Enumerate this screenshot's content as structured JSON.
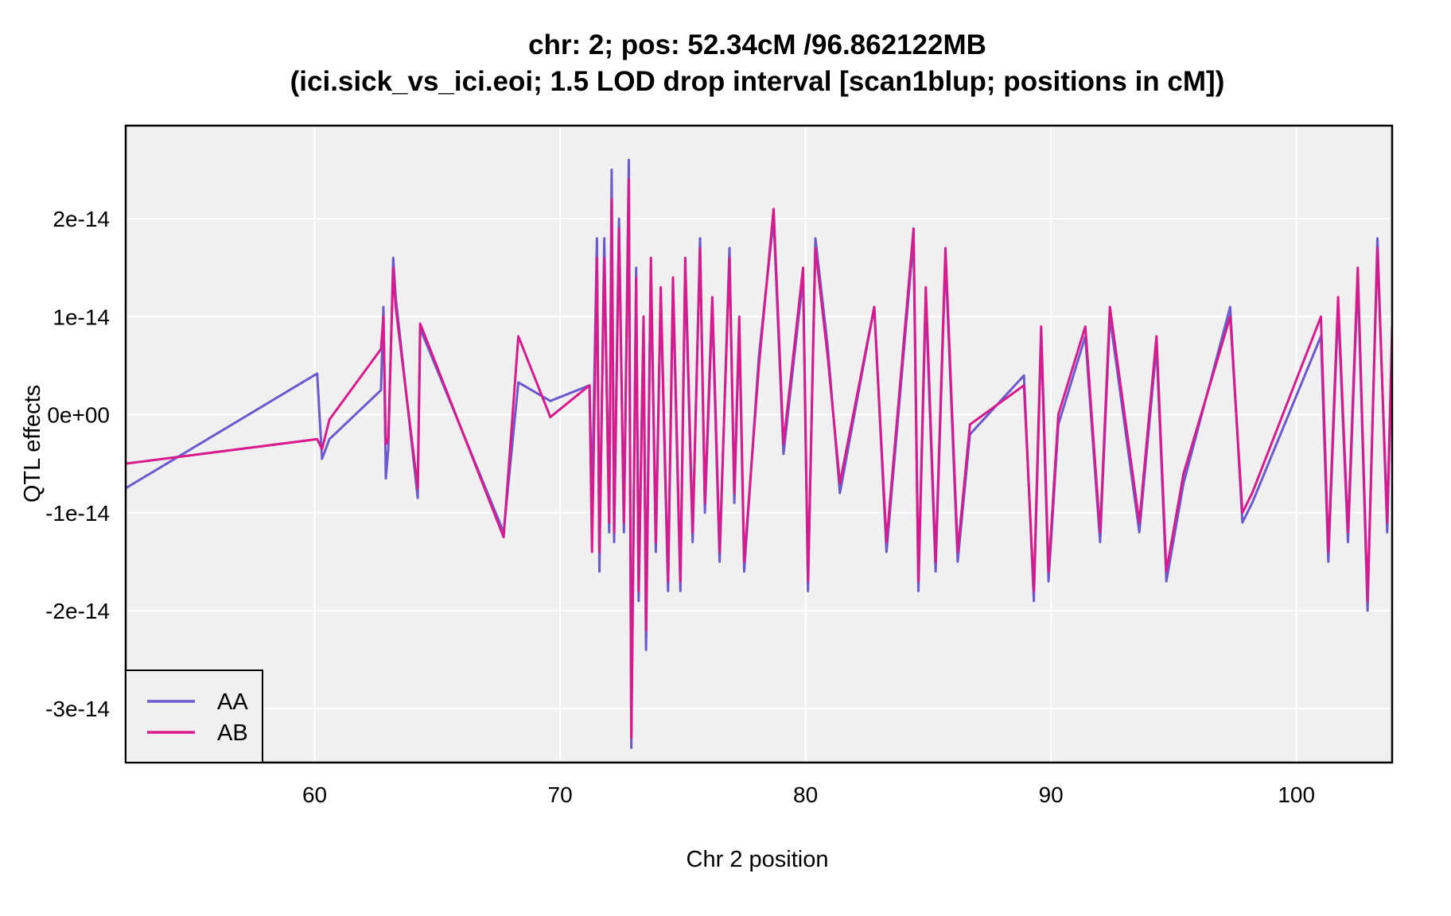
{
  "chart_data": {
    "type": "line",
    "title": "chr: 2; pos: 52.34cM /96.862122MB",
    "subtitle": "(ici.sick_vs_ici.eoi; 1.5 LOD drop interval [scan1blup; positions in cM])",
    "xlabel": "Chr 2 position",
    "ylabel": "QTL effects",
    "xlim": [
      52.3,
      103.9
    ],
    "ylim": [
      -3.55e-14,
      2.95e-14
    ],
    "x_ticks": [
      60,
      70,
      80,
      90,
      100
    ],
    "x_tick_labels": [
      "60",
      "70",
      "80",
      "90",
      "100"
    ],
    "y_ticks": [
      2e-14,
      1e-14,
      0,
      -1e-14,
      -2e-14,
      -3e-14
    ],
    "y_tick_labels": [
      "2e-14",
      "1e-14",
      "0e+00",
      "-1e-14",
      "-2e-14",
      "-3e-14"
    ],
    "grid": true,
    "legend_position": "bottom-left",
    "series": [
      {
        "name": "AA",
        "color": "#6a5acd",
        "x": [
          52.3,
          60.1,
          60.3,
          60.6,
          62.7,
          62.8,
          62.9,
          63.0,
          63.2,
          63.3,
          64.2,
          64.3,
          67.7,
          68.3,
          69.6,
          71.2,
          71.3,
          71.5,
          71.6,
          71.8,
          72.0,
          72.1,
          72.2,
          72.4,
          72.6,
          72.8,
          72.9,
          73.1,
          73.2,
          73.4,
          73.5,
          73.7,
          73.9,
          74.1,
          74.4,
          74.6,
          74.9,
          75.1,
          75.4,
          75.7,
          75.9,
          76.2,
          76.5,
          76.9,
          77.1,
          77.3,
          77.5,
          78.1,
          78.7,
          79.1,
          79.9,
          80.1,
          80.4,
          80.9,
          81.4,
          82.8,
          83.3,
          84.4,
          84.6,
          84.9,
          85.3,
          85.7,
          86.2,
          86.7,
          88.9,
          89.3,
          89.6,
          89.9,
          90.3,
          91.4,
          92.0,
          92.4,
          93.6,
          94.3,
          94.7,
          95.4,
          97.3,
          97.8,
          98.2,
          101.0,
          101.3,
          101.7,
          102.1,
          102.5,
          102.9,
          103.3,
          103.7,
          103.9
        ],
        "values": [
          -7.5e-15,
          4.2e-15,
          -4.5e-15,
          -2.5e-15,
          2.5e-15,
          1.1e-14,
          -6.5e-15,
          -3.5e-15,
          1.6e-14,
          1.2e-14,
          -8.5e-15,
          8.8e-15,
          -1.2e-14,
          3.3e-15,
          1.4e-15,
          3e-15,
          -9e-15,
          1.8e-14,
          -1.6e-14,
          1.8e-14,
          -1.2e-14,
          2.5e-14,
          -1.3e-14,
          2e-14,
          -1.2e-14,
          2.6e-14,
          -3.4e-14,
          1.5e-14,
          -1.9e-14,
          9e-15,
          -2.4e-14,
          1.5e-14,
          -1.4e-14,
          1.2e-14,
          -1.8e-14,
          1.3e-14,
          -1.8e-14,
          1.5e-14,
          -1.3e-14,
          1.8e-14,
          -1e-14,
          1.1e-14,
          -1.5e-14,
          1.7e-14,
          -9e-15,
          9e-15,
          -1.6e-14,
          6e-15,
          2e-14,
          -4e-15,
          1.4e-14,
          -1.8e-14,
          1.8e-14,
          7e-15,
          -8e-15,
          1.1e-14,
          -1.4e-14,
          1.8e-14,
          -1.8e-14,
          1.2e-14,
          -1.6e-14,
          1.6e-14,
          -1.5e-14,
          -2e-15,
          4e-15,
          -1.9e-14,
          8e-15,
          -1.7e-14,
          -1e-15,
          8e-15,
          -1.3e-14,
          1e-14,
          -1.2e-14,
          7e-15,
          -1.7e-14,
          -7e-15,
          1.1e-14,
          -1.1e-14,
          -9e-15,
          8e-15,
          -1.5e-14,
          1.1e-14,
          -1.3e-14,
          1.4e-14,
          -2e-14,
          1.8e-14,
          -1.2e-14,
          8e-15
        ]
      },
      {
        "name": "AB",
        "color": "#d81b8c",
        "x": [
          52.3,
          60.1,
          60.3,
          60.6,
          62.7,
          62.8,
          62.9,
          63.0,
          63.2,
          63.3,
          64.2,
          64.3,
          67.7,
          68.3,
          69.6,
          71.2,
          71.3,
          71.5,
          71.6,
          71.8,
          72.0,
          72.1,
          72.2,
          72.4,
          72.6,
          72.8,
          72.9,
          73.1,
          73.2,
          73.4,
          73.5,
          73.7,
          73.9,
          74.1,
          74.4,
          74.6,
          74.9,
          75.1,
          75.4,
          75.7,
          75.9,
          76.2,
          76.5,
          76.9,
          77.1,
          77.3,
          77.5,
          78.1,
          78.7,
          79.1,
          79.9,
          80.1,
          80.4,
          80.9,
          81.4,
          82.8,
          83.3,
          84.4,
          84.6,
          84.9,
          85.3,
          85.7,
          86.2,
          86.7,
          88.9,
          89.3,
          89.6,
          89.9,
          90.3,
          91.4,
          92.0,
          92.4,
          93.6,
          94.3,
          94.7,
          95.4,
          97.3,
          97.8,
          98.2,
          101.0,
          101.3,
          101.7,
          102.1,
          102.5,
          102.9,
          103.3,
          103.7,
          103.9
        ],
        "values": [
          -5e-15,
          -2.5e-15,
          -3.5e-15,
          -5e-16,
          6.7e-15,
          1e-14,
          -3e-15,
          -2.5e-15,
          1.5e-14,
          1.1e-14,
          -7.5e-15,
          9.3e-15,
          -1.25e-14,
          8e-15,
          -2.5e-16,
          3e-15,
          -1.4e-14,
          1.6e-14,
          -1.4e-14,
          1.6e-14,
          -1.1e-14,
          2.2e-14,
          -1.2e-14,
          1.9e-14,
          -1.1e-14,
          2.4e-14,
          -3.3e-14,
          1.4e-14,
          -1.8e-14,
          1e-14,
          -2.2e-14,
          1.6e-14,
          -1.3e-14,
          1.3e-14,
          -1.7e-14,
          1.4e-14,
          -1.7e-14,
          1.6e-14,
          -1.2e-14,
          1.7e-14,
          -9e-15,
          1.2e-14,
          -1.4e-14,
          1.6e-14,
          -8e-15,
          1e-14,
          -1.5e-14,
          5e-15,
          2.1e-14,
          -3e-15,
          1.5e-14,
          -1.7e-14,
          1.7e-14,
          6e-15,
          -7e-15,
          1.1e-14,
          -1.3e-14,
          1.9e-14,
          -1.7e-14,
          1.3e-14,
          -1.5e-14,
          1.7e-14,
          -1.4e-14,
          -1e-15,
          3e-15,
          -1.8e-14,
          9e-15,
          -1.6e-14,
          0,
          9e-15,
          -1.2e-14,
          1.1e-14,
          -1.1e-14,
          8e-15,
          -1.6e-14,
          -6e-15,
          1e-14,
          -1e-14,
          -8e-15,
          1e-14,
          -1.4e-14,
          1.2e-14,
          -1.2e-14,
          1.5e-14,
          -1.9e-14,
          1.7e-14,
          -1.1e-14,
          9e-15
        ]
      }
    ]
  }
}
